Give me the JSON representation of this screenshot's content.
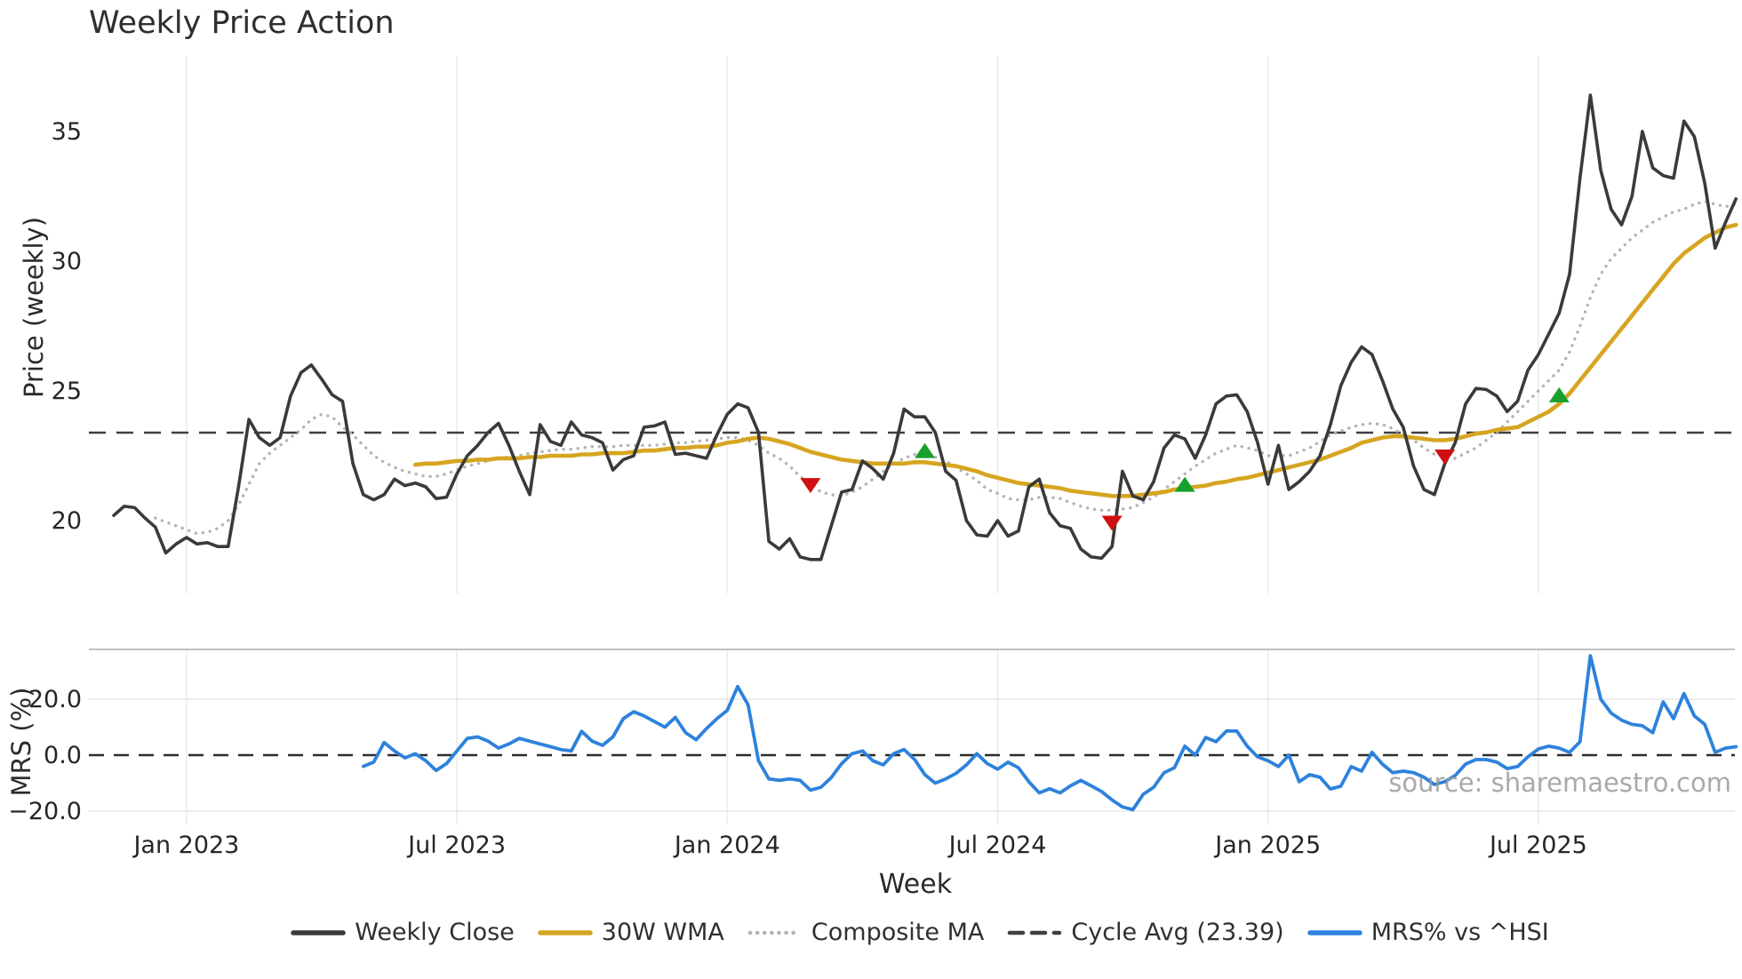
{
  "title": "Weekly Price Action",
  "watermark": "source: sharemaestro.com",
  "colors": {
    "close": "#3a3a3a",
    "wma": "#d6a521",
    "composite": "#b3b3b3",
    "cycle": "#3f3f3f",
    "mrs": "#2d82dc",
    "marker_up": "#17a02b",
    "marker_down": "#d01010",
    "grid": "#ebebf1",
    "panel_border": "#aeaeae",
    "tick_text": "#262626",
    "watermark_text": "#9b9b9b"
  },
  "legend": {
    "items": [
      {
        "label": "Weekly Close",
        "style": "solid",
        "color_key": "close"
      },
      {
        "label": "30W WMA",
        "style": "solid",
        "color_key": "wma"
      },
      {
        "label": "Composite MA",
        "style": "dotted",
        "color_key": "composite"
      },
      {
        "label": "Cycle Avg (23.39)",
        "style": "dashed",
        "color_key": "cycle"
      },
      {
        "label": "MRS% vs ^HSI",
        "style": "solid",
        "color_key": "mrs"
      }
    ]
  },
  "chart_data": [
    {
      "type": "line",
      "panel": "price",
      "title": "Weekly Price Action",
      "xlabel": "Week",
      "ylabel": "Price (weekly)",
      "ylim": [
        17.2,
        38.0
      ],
      "y_ticks": [
        {
          "value": 20,
          "label": "20"
        },
        {
          "value": 25,
          "label": "25"
        },
        {
          "value": 30,
          "label": "30"
        },
        {
          "value": 35,
          "label": "35"
        }
      ],
      "x_ticks": [
        {
          "week": 7,
          "label": "Jan 2023"
        },
        {
          "week": 33,
          "label": "Jul 2023"
        },
        {
          "week": 59,
          "label": "Jan 2024"
        },
        {
          "week": 85,
          "label": "Jul 2024"
        },
        {
          "week": 111,
          "label": "Jan 2025"
        },
        {
          "week": 137,
          "label": "Jul 2025"
        }
      ],
      "total_weeks": 157,
      "grid": "vertical-only",
      "cycle_avg": 23.39,
      "series": [
        {
          "name": "Weekly Close",
          "color_key": "close",
          "start_week": 0,
          "values": [
            20.2,
            20.55,
            20.5,
            20.1,
            19.75,
            18.75,
            19.1,
            19.35,
            19.1,
            19.15,
            19.0,
            19.0,
            21.3,
            23.9,
            23.2,
            22.9,
            23.2,
            24.8,
            25.7,
            26.0,
            25.45,
            24.85,
            24.6,
            22.2,
            21.0,
            20.8,
            21.0,
            21.6,
            21.35,
            21.45,
            21.3,
            20.85,
            20.9,
            21.8,
            22.5,
            22.9,
            23.4,
            23.75,
            22.9,
            21.9,
            21.0,
            23.7,
            23.05,
            22.9,
            23.8,
            23.3,
            23.2,
            23.0,
            21.95,
            22.35,
            22.5,
            23.6,
            23.65,
            23.8,
            22.55,
            22.6,
            22.5,
            22.4,
            23.3,
            24.1,
            24.5,
            24.35,
            23.4,
            19.2,
            18.9,
            19.3,
            18.6,
            18.5,
            18.5,
            19.8,
            21.1,
            21.2,
            22.3,
            22.0,
            21.6,
            22.6,
            24.3,
            24.0,
            24.0,
            23.4,
            21.9,
            21.55,
            20.0,
            19.45,
            19.4,
            20.0,
            19.4,
            19.6,
            21.3,
            21.6,
            20.3,
            19.8,
            19.7,
            18.9,
            18.6,
            18.55,
            19.0,
            21.9,
            20.95,
            20.8,
            21.5,
            22.8,
            23.3,
            23.15,
            22.4,
            23.3,
            24.5,
            24.8,
            24.85,
            24.2,
            23.0,
            21.4,
            22.9,
            21.2,
            21.5,
            21.9,
            22.5,
            23.7,
            25.2,
            26.1,
            26.7,
            26.4,
            25.4,
            24.3,
            23.6,
            22.1,
            21.2,
            21.0,
            22.2,
            23.0,
            24.5,
            25.1,
            25.05,
            24.8,
            24.2,
            24.6,
            25.8,
            26.4,
            27.2,
            28.0,
            29.5,
            33.2,
            36.4,
            33.5,
            32.0,
            31.4,
            32.5,
            35.0,
            33.6,
            33.3,
            33.2,
            35.4,
            34.8,
            33.0,
            30.5,
            31.5,
            32.4
          ]
        },
        {
          "name": "30W WMA",
          "color_key": "wma",
          "start_week": 29,
          "values": [
            22.15,
            22.2,
            22.2,
            22.25,
            22.3,
            22.3,
            22.35,
            22.35,
            22.4,
            22.4,
            22.4,
            22.45,
            22.45,
            22.5,
            22.5,
            22.5,
            22.55,
            22.55,
            22.6,
            22.6,
            22.6,
            22.65,
            22.7,
            22.7,
            22.75,
            22.8,
            22.8,
            22.85,
            22.85,
            22.9,
            23.0,
            23.05,
            23.15,
            23.2,
            23.15,
            23.05,
            22.95,
            22.8,
            22.65,
            22.55,
            22.45,
            22.35,
            22.3,
            22.25,
            22.2,
            22.2,
            22.2,
            22.2,
            22.25,
            22.25,
            22.2,
            22.15,
            22.1,
            22.0,
            21.9,
            21.75,
            21.65,
            21.55,
            21.45,
            21.4,
            21.35,
            21.3,
            21.25,
            21.15,
            21.1,
            21.05,
            21.0,
            20.95,
            20.95,
            20.95,
            21.0,
            21.05,
            21.1,
            21.2,
            21.25,
            21.3,
            21.35,
            21.45,
            21.5,
            21.6,
            21.65,
            21.75,
            21.85,
            21.95,
            22.05,
            22.15,
            22.25,
            22.35,
            22.5,
            22.65,
            22.8,
            23.0,
            23.1,
            23.2,
            23.25,
            23.25,
            23.2,
            23.15,
            23.1,
            23.1,
            23.15,
            23.25,
            23.35,
            23.4,
            23.5,
            23.55,
            23.6,
            23.8,
            24.0,
            24.2,
            24.5,
            24.9,
            25.4,
            25.9,
            26.4,
            26.9,
            27.4,
            27.9,
            28.4,
            28.9,
            29.4,
            29.9,
            30.3,
            30.6,
            30.9,
            31.1,
            31.3,
            31.4
          ]
        },
        {
          "name": "Composite MA",
          "color_key": "composite",
          "start_week": 4,
          "values": [
            20.1,
            19.95,
            19.8,
            19.65,
            19.5,
            19.55,
            19.7,
            20.0,
            20.6,
            21.4,
            22.2,
            22.6,
            22.9,
            23.2,
            23.5,
            23.9,
            24.1,
            24.0,
            23.6,
            23.3,
            22.9,
            22.5,
            22.25,
            22.05,
            21.9,
            21.8,
            21.7,
            21.7,
            21.8,
            21.95,
            22.1,
            22.2,
            22.3,
            22.4,
            22.45,
            22.5,
            22.6,
            22.65,
            22.7,
            22.75,
            22.75,
            22.8,
            22.85,
            22.85,
            22.85,
            22.9,
            22.9,
            22.9,
            22.9,
            22.95,
            23.0,
            23.0,
            23.05,
            23.1,
            23.15,
            23.2,
            23.2,
            23.1,
            22.9,
            22.6,
            22.4,
            22.1,
            21.7,
            21.45,
            21.1,
            21.0,
            20.95,
            21.1,
            21.3,
            21.6,
            21.9,
            22.2,
            22.4,
            22.55,
            22.6,
            22.45,
            22.3,
            22.05,
            21.8,
            21.55,
            21.2,
            21.05,
            20.85,
            20.8,
            20.8,
            20.9,
            20.9,
            20.85,
            20.7,
            20.55,
            20.45,
            20.4,
            20.4,
            20.45,
            20.5,
            20.7,
            20.9,
            21.2,
            21.5,
            21.8,
            22.1,
            22.35,
            22.6,
            22.75,
            22.9,
            22.8,
            22.7,
            22.5,
            22.5,
            22.5,
            22.65,
            22.8,
            23.05,
            23.3,
            23.45,
            23.6,
            23.7,
            23.75,
            23.7,
            23.55,
            23.3,
            23.1,
            22.8,
            22.55,
            22.45,
            22.4,
            22.6,
            22.8,
            23.1,
            23.4,
            23.8,
            24.2,
            24.6,
            25.0,
            25.4,
            25.8,
            26.5,
            27.5,
            28.6,
            29.5,
            30.1,
            30.5,
            30.9,
            31.2,
            31.5,
            31.7,
            31.9,
            32.0,
            32.2,
            32.3,
            32.2,
            32.1,
            32.2
          ]
        }
      ],
      "markers": [
        {
          "week": 67,
          "price": 21.4,
          "direction": "down"
        },
        {
          "week": 78,
          "price": 22.65,
          "direction": "up"
        },
        {
          "week": 96,
          "price": 19.95,
          "direction": "down"
        },
        {
          "week": 103,
          "price": 21.35,
          "direction": "up"
        },
        {
          "week": 128,
          "price": 22.5,
          "direction": "down"
        },
        {
          "week": 139,
          "price": 24.8,
          "direction": "up"
        }
      ]
    },
    {
      "type": "line",
      "panel": "mrs",
      "xlabel": "Week",
      "ylabel": "MRS (%)",
      "ylim": [
        -27.0,
        37.8
      ],
      "y_ticks": [
        {
          "value": 20,
          "label": "20.0"
        },
        {
          "value": 0,
          "label": "0.0"
        },
        {
          "value": -20,
          "label": "−20.0"
        }
      ],
      "zero_line": 0,
      "grid": "horizontal+vertical",
      "series": [
        {
          "name": "MRS% vs ^HSI",
          "color_key": "mrs",
          "start_week": 24,
          "values": [
            -4,
            -2.5,
            4.5,
            1.5,
            -1,
            0.5,
            -2,
            -5.5,
            -3,
            1.5,
            6,
            6.5,
            5,
            2.5,
            4,
            6,
            5,
            4,
            3,
            2,
            1.5,
            8.5,
            5,
            3.5,
            6.5,
            13,
            15.5,
            14,
            12,
            10,
            13.5,
            8,
            5.5,
            9.5,
            13,
            16,
            24.5,
            18,
            -2,
            -8.5,
            -9,
            -8.5,
            -9,
            -12.5,
            -11.5,
            -8,
            -3,
            0.5,
            1.5,
            -2,
            -3.5,
            0.5,
            2,
            -1.5,
            -7,
            -10,
            -8.5,
            -6.5,
            -3.5,
            0.5,
            -3,
            -5,
            -2.5,
            -4.5,
            -9.5,
            -13.5,
            -12,
            -13.5,
            -11,
            -9,
            -11,
            -13,
            -16,
            -18.5,
            -19.5,
            -14,
            -11.5,
            -6.3,
            -4.5,
            3.2,
            0,
            6.3,
            4.8,
            8.6,
            8.6,
            3.2,
            -0.6,
            -2,
            -4.1,
            0,
            -9.5,
            -7,
            -7.9,
            -12.1,
            -11.1,
            -4.1,
            -5.7,
            1,
            -3.2,
            -6.3,
            -5.7,
            -6.3,
            -7.9,
            -10.5,
            -9.5,
            -7.3,
            -3.2,
            -1.6,
            -1.6,
            -2.5,
            -4.8,
            -4.1,
            -0.6,
            2.2,
            3.2,
            2.5,
            1,
            4.8,
            35.5,
            20,
            15,
            12.5,
            11,
            10.5,
            8,
            19,
            13,
            22,
            14,
            11,
            1,
            2.5,
            3
          ]
        }
      ]
    }
  ]
}
